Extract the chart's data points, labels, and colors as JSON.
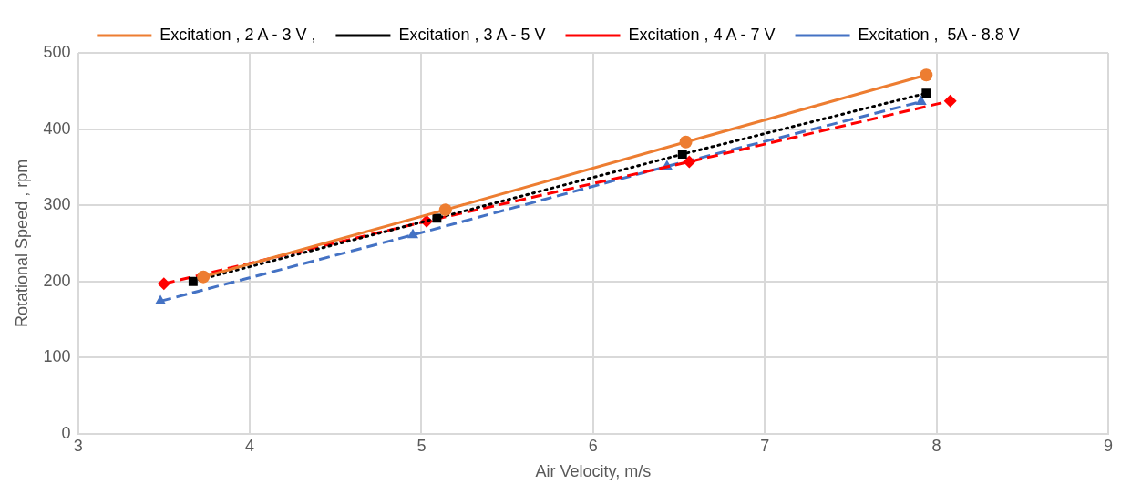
{
  "chart_data": {
    "type": "line",
    "xlabel": "Air Velocity, m/s",
    "ylabel": "Rotational Speed , rpm",
    "xlim": [
      3,
      9
    ],
    "xticks": [
      3,
      4,
      5,
      6,
      7,
      8,
      9
    ],
    "ylim": [
      0,
      500
    ],
    "yticks": [
      0,
      100,
      200,
      300,
      400,
      500
    ],
    "grid": true,
    "legend": "top",
    "series": [
      {
        "name": "Excitation , 2 A - 3 V ,",
        "color": "#ed7d31",
        "marker": "circle",
        "line_style": "solid",
        "x": [
          3.73,
          5.14,
          6.54,
          7.94
        ],
        "values": [
          206,
          294,
          383,
          471
        ]
      },
      {
        "name": "Excitation , 3 A - 5 V",
        "color": "#000000",
        "marker": "square",
        "line_style": "dotted",
        "x": [
          3.67,
          5.09,
          6.52,
          7.94
        ],
        "values": [
          200,
          283,
          367,
          447
        ]
      },
      {
        "name": "Excitation , 4 A - 7 V",
        "color": "#ff0000",
        "marker": "diamond",
        "line_style": "dashed",
        "x": [
          3.5,
          5.03,
          6.56,
          8.08
        ],
        "values": [
          197,
          279,
          357,
          437
        ]
      },
      {
        "name": "Excitation ,  5A - 8.8 V",
        "color": "#4472c4",
        "marker": "triangle",
        "line_style": "dashed",
        "x": [
          3.48,
          4.95,
          6.43,
          7.91
        ],
        "values": [
          174,
          261,
          351,
          436
        ]
      }
    ]
  }
}
